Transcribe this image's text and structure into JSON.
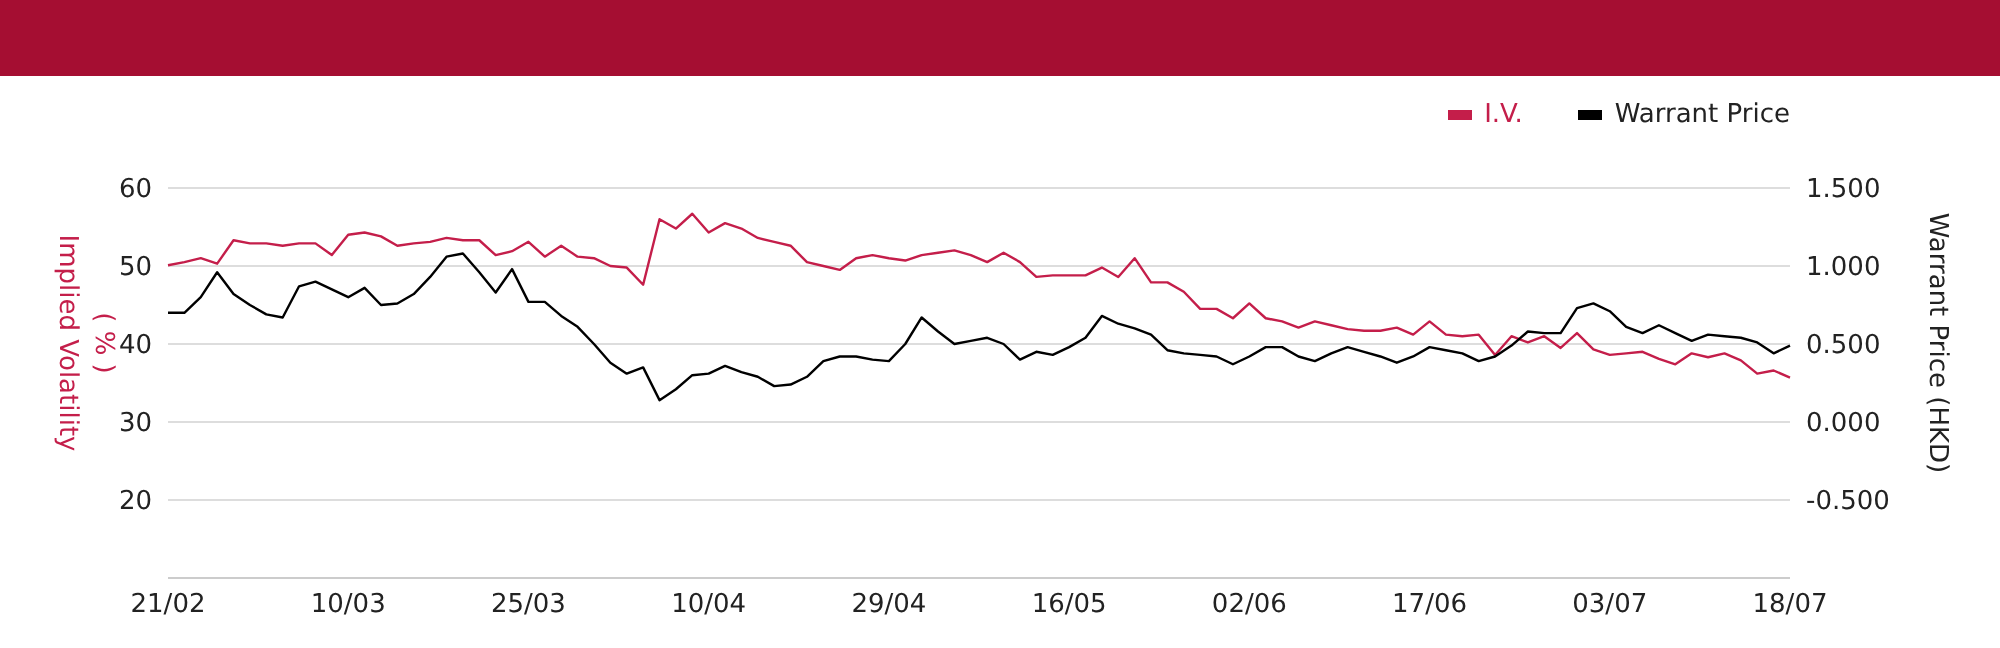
{
  "chart_data": {
    "type": "line",
    "ylabel": "Implied Volatility\n( % )",
    "y2label": "Warrant Price (HKD)",
    "categories": [
      "21/02",
      null,
      null,
      null,
      null,
      null,
      null,
      null,
      null,
      null,
      null,
      "10/03",
      null,
      null,
      null,
      null,
      null,
      null,
      null,
      null,
      null,
      null,
      "25/03",
      null,
      null,
      null,
      null,
      null,
      null,
      null,
      null,
      null,
      null,
      "10/04",
      null,
      null,
      null,
      null,
      null,
      null,
      null,
      null,
      null,
      null,
      "29/04",
      null,
      null,
      null,
      null,
      null,
      null,
      null,
      null,
      null,
      null,
      "16/05",
      null,
      null,
      null,
      null,
      null,
      null,
      null,
      null,
      null,
      null,
      "02/06",
      null,
      null,
      null,
      null,
      null,
      null,
      null,
      null,
      null,
      null,
      "17/06",
      null,
      null,
      null,
      null,
      null,
      null,
      null,
      null,
      null,
      null,
      "03/07",
      null,
      null,
      null,
      null,
      null,
      null,
      null,
      null,
      null,
      null,
      "18/07"
    ],
    "series": [
      {
        "name": "I.V.",
        "color": "#c41e4a",
        "values": [
          50.1,
          50.5,
          51,
          50.3,
          53.3,
          52.9,
          52.9,
          52.6,
          52.9,
          52.9,
          51.4,
          54,
          54.3,
          53.8,
          52.6,
          52.9,
          53.1,
          53.6,
          53.3,
          53.3,
          51.4,
          51.9,
          53.1,
          51.2,
          52.6,
          51.2,
          51,
          50,
          49.8,
          47.6,
          56,
          54.8,
          56.7,
          54.3,
          55.5,
          54.8,
          53.6,
          53.1,
          52.6,
          50.5,
          50,
          49.5,
          51,
          51.4,
          51,
          50.7,
          51.4,
          51.7,
          52,
          51.4,
          50.5,
          51.7,
          50.5,
          48.6,
          48.8,
          48.8,
          48.8,
          49.8,
          48.6,
          51,
          47.9,
          47.9,
          46.7,
          44.5,
          44.5,
          43.3,
          45.2,
          43.3,
          42.9,
          42.1,
          42.9,
          42.4,
          41.9,
          41.7,
          41.7,
          42.1,
          41.2,
          42.9,
          41.2,
          41,
          41.2,
          38.6,
          41,
          40.2,
          41,
          39.5,
          41.4,
          39.3,
          38.6,
          38.8,
          39,
          38.1,
          37.4,
          38.8,
          38.3,
          38.8,
          37.9,
          36.2,
          36.6,
          35.7
        ]
      },
      {
        "name": "Warrant Price",
        "color": "#000000",
        "axis": "y2",
        "values": [
          0.7,
          0.7,
          0.8,
          0.96,
          0.82,
          0.75,
          0.69,
          0.67,
          0.87,
          0.9,
          0.85,
          0.8,
          0.86,
          0.75,
          0.76,
          0.82,
          0.93,
          1.06,
          1.08,
          0.96,
          0.83,
          0.98,
          0.77,
          0.77,
          0.68,
          0.61,
          0.5,
          0.38,
          0.31,
          0.35,
          0.14,
          0.21,
          0.3,
          0.31,
          0.36,
          0.32,
          0.29,
          0.23,
          0.24,
          0.29,
          0.39,
          0.42,
          0.42,
          0.4,
          0.39,
          0.5,
          0.67,
          0.58,
          0.5,
          0.52,
          0.54,
          0.5,
          0.4,
          0.45,
          0.43,
          0.48,
          0.54,
          0.68,
          0.63,
          0.6,
          0.56,
          0.46,
          0.44,
          0.43,
          0.42,
          0.37,
          0.42,
          0.48,
          0.48,
          0.42,
          0.39,
          0.44,
          0.48,
          0.45,
          0.42,
          0.38,
          0.42,
          0.48,
          0.46,
          0.44,
          0.39,
          0.42,
          0.49,
          0.58,
          0.57,
          0.57,
          0.73,
          0.76,
          0.71,
          0.61,
          0.57,
          0.62,
          0.57,
          0.52,
          0.56,
          0.55,
          0.54,
          0.51,
          0.44,
          0.49
        ]
      }
    ],
    "ylim": [
      10,
      60
    ],
    "yticks": [
      20,
      30,
      40,
      50,
      60
    ],
    "y2lim": [
      -1,
      1.5
    ],
    "y2ticks": [
      {
        "value": -0.5,
        "label": "-0.500"
      },
      {
        "value": 0,
        "label": "0.000"
      },
      {
        "value": 0.5,
        "label": "0.500"
      },
      {
        "value": 1,
        "label": "1.000"
      },
      {
        "value": 1.5,
        "label": "1.500"
      }
    ],
    "grid": "y",
    "legend": "top right",
    "marker": "none",
    "line_style": "solid"
  }
}
